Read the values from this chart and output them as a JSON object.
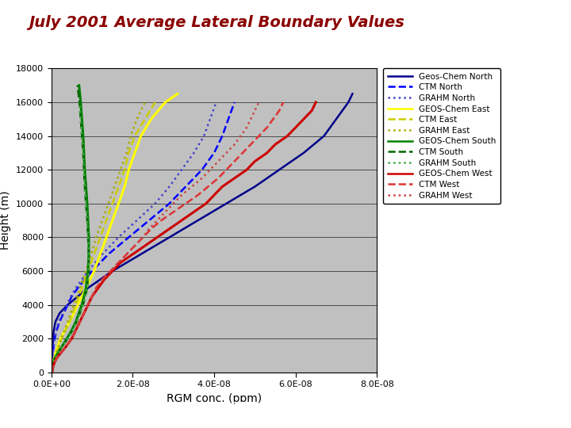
{
  "title": "July 2001 Average Lateral Boundary Values",
  "xlabel": "RGM conc. (ppm)",
  "ylabel": "Height (m)",
  "xlim": [
    0,
    8e-08
  ],
  "ylim": [
    0,
    18000
  ],
  "yticks": [
    0,
    2000,
    4000,
    6000,
    8000,
    10000,
    12000,
    14000,
    16000,
    18000
  ],
  "xticks": [
    0.0,
    2e-08,
    4e-08,
    6e-08,
    8e-08
  ],
  "background_color": "#c0c0c0",
  "title_color": "#8b0000",
  "footer_color": "#4a8fc2",
  "series": [
    {
      "label": "Geos-Chem North",
      "color": "#00008b",
      "linestyle": "-",
      "linewidth": 1.8,
      "heights": [
        0,
        500,
        1000,
        1500,
        2000,
        2500,
        3000,
        3500,
        4000,
        5000,
        6000,
        7000,
        8000,
        9000,
        10000,
        11000,
        12000,
        13000,
        14000,
        15000,
        16000,
        16500
      ],
      "values": [
        1e-10,
        1.5e-10,
        2e-10,
        3e-10,
        4e-10,
        6e-10,
        1e-09,
        2e-09,
        4e-09,
        9e-09,
        1.5e-08,
        2.2e-08,
        2.9e-08,
        3.6e-08,
        4.3e-08,
        5e-08,
        5.6e-08,
        6.2e-08,
        6.7e-08,
        7e-08,
        7.3e-08,
        7.4e-08
      ]
    },
    {
      "label": "CTM North",
      "color": "#0000ff",
      "linestyle": "--",
      "linewidth": 1.8,
      "heights": [
        0,
        500,
        1000,
        1500,
        2000,
        2500,
        3000,
        3500,
        4000,
        4500,
        5000,
        6000,
        7000,
        8000,
        9000,
        10000,
        11000,
        12000,
        13000,
        14000,
        15000,
        16000
      ],
      "values": [
        1e-10,
        2e-10,
        3e-10,
        5e-10,
        8e-10,
        1.3e-09,
        2e-09,
        3e-09,
        4e-09,
        5e-09,
        6.5e-09,
        1e-08,
        1.4e-08,
        1.9e-08,
        2.4e-08,
        2.9e-08,
        3.3e-08,
        3.7e-08,
        4e-08,
        4.2e-08,
        4.35e-08,
        4.5e-08
      ]
    },
    {
      "label": "GRAHM North",
      "color": "#4444cc",
      "linestyle": ":",
      "linewidth": 1.8,
      "heights": [
        0,
        500,
        1000,
        1500,
        2000,
        2500,
        3000,
        3500,
        4000,
        4500,
        5000,
        6000,
        7000,
        8000,
        9000,
        10000,
        11000,
        12000,
        13000,
        14000,
        15000,
        16000
      ],
      "values": [
        1e-10,
        2e-10,
        3e-10,
        5e-10,
        8e-10,
        1.2e-09,
        1.8e-09,
        2.8e-09,
        3.8e-09,
        4.8e-09,
        6e-09,
        9e-09,
        1.25e-08,
        1.65e-08,
        2.1e-08,
        2.55e-08,
        2.9e-08,
        3.2e-08,
        3.5e-08,
        3.75e-08,
        3.9e-08,
        4.05e-08
      ]
    },
    {
      "label": "GEOS-Chem East",
      "color": "#ffff00",
      "linestyle": "-",
      "linewidth": 2.2,
      "heights": [
        0,
        200,
        400,
        600,
        800,
        1000,
        1500,
        2000,
        3000,
        4000,
        5000,
        6000,
        7000,
        8000,
        9000,
        10000,
        11000,
        12000,
        13000,
        14000,
        15000,
        16000,
        16500
      ],
      "values": [
        1e-10,
        2e-10,
        3e-10,
        4e-10,
        6e-10,
        9e-10,
        1.5e-09,
        2.2e-09,
        4.5e-09,
        6.5e-09,
        8.5e-09,
        1.05e-08,
        1.2e-08,
        1.35e-08,
        1.5e-08,
        1.65e-08,
        1.8e-08,
        1.9e-08,
        2.05e-08,
        2.2e-08,
        2.45e-08,
        2.8e-08,
        3.1e-08
      ]
    },
    {
      "label": "CTM East",
      "color": "#cccc00",
      "linestyle": "--",
      "linewidth": 1.8,
      "heights": [
        0,
        200,
        400,
        600,
        800,
        1000,
        1500,
        2000,
        3000,
        4000,
        5000,
        6000,
        7000,
        8000,
        9000,
        10000,
        11000,
        12000,
        13000,
        14000,
        15000,
        16000
      ],
      "values": [
        1e-10,
        2e-10,
        3e-10,
        5e-10,
        7e-10,
        1.1e-09,
        1.8e-09,
        2.5e-09,
        4.5e-09,
        6e-09,
        7.5e-09,
        9e-09,
        1.05e-08,
        1.2e-08,
        1.35e-08,
        1.5e-08,
        1.65e-08,
        1.8e-08,
        1.9e-08,
        2.05e-08,
        2.3e-08,
        2.55e-08
      ]
    },
    {
      "label": "GRAHM East",
      "color": "#aaaa00",
      "linestyle": ":",
      "linewidth": 1.8,
      "heights": [
        0,
        200,
        400,
        600,
        800,
        1000,
        1500,
        2000,
        3000,
        4000,
        5000,
        6000,
        7000,
        8000,
        9000,
        10000,
        11000,
        12000,
        13000,
        14000,
        15000,
        16000
      ],
      "values": [
        1e-10,
        2e-10,
        3e-10,
        5e-10,
        7e-10,
        1e-09,
        1.7e-09,
        2.4e-09,
        4e-09,
        5.5e-09,
        7e-09,
        8.5e-09,
        9.8e-09,
        1.1e-08,
        1.25e-08,
        1.4e-08,
        1.55e-08,
        1.7e-08,
        1.85e-08,
        1.95e-08,
        2.1e-08,
        2.3e-08
      ]
    },
    {
      "label": "GEOS-Chem South",
      "color": "#008000",
      "linestyle": "-",
      "linewidth": 2.2,
      "heights": [
        0,
        200,
        400,
        600,
        800,
        1000,
        1200,
        1500,
        2000,
        2500,
        3000,
        4000,
        5000,
        6000,
        7000,
        8000,
        9000,
        10000,
        11000,
        12000,
        13000,
        14000,
        15000,
        16000,
        17000
      ],
      "values": [
        1e-10,
        2e-10,
        3e-10,
        5e-10,
        8e-10,
        1.2e-09,
        1.7e-09,
        2.5e-09,
        3.8e-09,
        5e-09,
        6e-09,
        7.5e-09,
        8.5e-09,
        9e-09,
        9.2e-09,
        9.2e-09,
        9e-09,
        8.8e-09,
        8.5e-09,
        8.2e-09,
        8e-09,
        7.8e-09,
        7.5e-09,
        7.2e-09,
        6.8e-09
      ]
    },
    {
      "label": "CTM South",
      "color": "#006600",
      "linestyle": "--",
      "linewidth": 1.8,
      "heights": [
        0,
        200,
        400,
        600,
        800,
        1000,
        1200,
        1500,
        2000,
        2500,
        3000,
        4000,
        5000,
        6000,
        7000,
        8000,
        9000,
        10000,
        11000,
        12000,
        13000,
        14000,
        15000,
        16000,
        17000
      ],
      "values": [
        1e-10,
        2e-10,
        3e-10,
        5e-10,
        8e-10,
        1.2e-09,
        1.7e-09,
        2.5e-09,
        4e-09,
        5.2e-09,
        6.2e-09,
        7.8e-09,
        8.8e-09,
        9.2e-09,
        9.2e-09,
        9e-09,
        8.8e-09,
        8.5e-09,
        8.2e-09,
        8e-09,
        7.8e-09,
        7.5e-09,
        7.2e-09,
        6.9e-09,
        6.4e-09
      ]
    },
    {
      "label": "GRAHM South",
      "color": "#44aa44",
      "linestyle": ":",
      "linewidth": 1.8,
      "heights": [
        0,
        200,
        400,
        600,
        800,
        1000,
        1200,
        1500,
        2000,
        2500,
        3000,
        4000,
        5000,
        6000,
        7000,
        8000,
        9000,
        10000,
        11000,
        12000,
        13000,
        14000,
        15000,
        16000
      ],
      "values": [
        1e-10,
        2e-10,
        3e-10,
        5e-10,
        8e-10,
        1.2e-09,
        1.7e-09,
        2.5e-09,
        4e-09,
        5.2e-09,
        6.2e-09,
        7.8e-09,
        8.8e-09,
        9.2e-09,
        9.2e-09,
        9e-09,
        8.8e-09,
        8.5e-09,
        8.2e-09,
        8e-09,
        7.8e-09,
        7.5e-09,
        7.2e-09,
        6.9e-09
      ]
    },
    {
      "label": "GEOS-Chem West",
      "color": "#cc0000",
      "linestyle": "-",
      "linewidth": 2.2,
      "heights": [
        0,
        200,
        400,
        600,
        800,
        1000,
        1200,
        1500,
        2000,
        2500,
        3000,
        3500,
        4000,
        4500,
        5000,
        5500,
        6000,
        6500,
        7000,
        7500,
        8000,
        8500,
        9000,
        9500,
        10000,
        10500,
        11000,
        11500,
        12000,
        12500,
        13000,
        13500,
        14000,
        14500,
        15000,
        15500,
        16000
      ],
      "values": [
        2e-10,
        3e-10,
        5e-10,
        8e-10,
        1.2e-09,
        1.8e-09,
        2.5e-09,
        3.5e-09,
        5e-09,
        6e-09,
        7e-09,
        8e-09,
        9e-09,
        1e-08,
        1.15e-08,
        1.3e-08,
        1.5e-08,
        1.7e-08,
        2e-08,
        2.3e-08,
        2.6e-08,
        2.9e-08,
        3.2e-08,
        3.5e-08,
        3.8e-08,
        4e-08,
        4.2e-08,
        4.5e-08,
        4.8e-08,
        5e-08,
        5.3e-08,
        5.5e-08,
        5.8e-08,
        6e-08,
        6.2e-08,
        6.4e-08,
        6.5e-08
      ]
    },
    {
      "label": "CTM West",
      "color": "#dd3333",
      "linestyle": "--",
      "linewidth": 1.8,
      "heights": [
        0,
        200,
        400,
        600,
        800,
        1000,
        1200,
        1500,
        2000,
        2500,
        3000,
        3500,
        4000,
        4500,
        5000,
        5500,
        6000,
        6500,
        7000,
        7500,
        8000,
        8500,
        9000,
        9500,
        10000,
        10500,
        11000,
        11500,
        12000,
        12500,
        13000,
        13500,
        14000,
        14500,
        15000,
        15500,
        16000
      ],
      "values": [
        2e-10,
        3e-10,
        5e-10,
        8e-10,
        1.2e-09,
        1.8e-09,
        2.5e-09,
        3.5e-09,
        5e-09,
        6e-09,
        7e-09,
        8e-09,
        9e-09,
        1e-08,
        1.1e-08,
        1.25e-08,
        1.45e-08,
        1.65e-08,
        1.85e-08,
        2.05e-08,
        2.25e-08,
        2.45e-08,
        2.7e-08,
        3e-08,
        3.3e-08,
        3.6e-08,
        3.85e-08,
        4.1e-08,
        4.3e-08,
        4.5e-08,
        4.7e-08,
        4.9e-08,
        5.1e-08,
        5.3e-08,
        5.45e-08,
        5.6e-08,
        5.7e-08
      ]
    },
    {
      "label": "GRAHM West",
      "color": "#cc4444",
      "linestyle": ":",
      "linewidth": 1.8,
      "heights": [
        0,
        200,
        400,
        600,
        800,
        1000,
        1200,
        1500,
        2000,
        2500,
        3000,
        3500,
        4000,
        4500,
        5000,
        5500,
        6000,
        6500,
        7000,
        7500,
        8000,
        8500,
        9000,
        9500,
        10000,
        10500,
        11000,
        11500,
        12000,
        12500,
        13000,
        13500,
        14000,
        14500,
        15000,
        15500,
        16000
      ],
      "values": [
        2e-10,
        3e-10,
        5e-10,
        8e-10,
        1.2e-09,
        1.8e-09,
        2.5e-09,
        3.5e-09,
        5e-09,
        6e-09,
        7e-09,
        8e-09,
        9e-09,
        1e-08,
        1.1e-08,
        1.25e-08,
        1.45e-08,
        1.65e-08,
        1.85e-08,
        2.05e-08,
        2.25e-08,
        2.4e-08,
        2.6e-08,
        2.8e-08,
        3e-08,
        3.2e-08,
        3.45e-08,
        3.7e-08,
        3.9e-08,
        4.1e-08,
        4.3e-08,
        4.5e-08,
        4.65e-08,
        4.8e-08,
        4.9e-08,
        5e-08,
        5.1e-08
      ]
    }
  ]
}
